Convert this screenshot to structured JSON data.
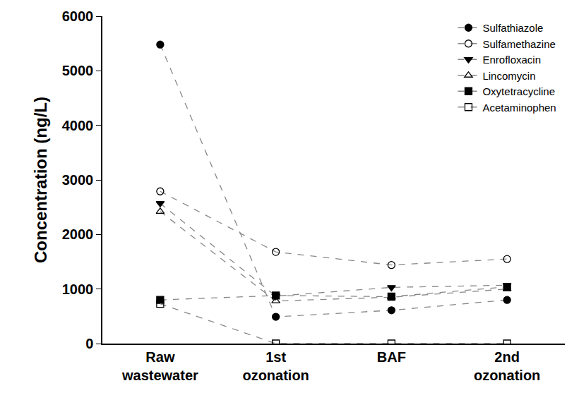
{
  "chart_data": {
    "type": "line",
    "y_label": "Concentration (ng/L)",
    "categories": [
      "Raw wastewater",
      "1st ozonation",
      "BAF",
      "2nd ozonation"
    ],
    "series": [
      {
        "name": "Sulfathiazole",
        "color": "#000000",
        "marker": "circle",
        "line_style": "dashed",
        "values": [
          5480,
          490,
          610,
          800
        ]
      },
      {
        "name": "Sulfamethazine",
        "color": "#000000",
        "marker": "circle-open",
        "line_style": "dashed",
        "values": [
          2790,
          1680,
          1440,
          1550
        ]
      },
      {
        "name": "Enrofloxacin",
        "color": "#000000",
        "marker": "triangle-down",
        "line_style": "dashed",
        "values": [
          2570,
          870,
          1030,
          1070
        ]
      },
      {
        "name": "Lincomycin",
        "color": "#000000",
        "marker": "triangle-up-open",
        "line_style": "dashed",
        "values": [
          2420,
          780,
          850,
          1000
        ]
      },
      {
        "name": "Oxytetracycline",
        "color": "#000000",
        "marker": "square",
        "line_style": "dashed",
        "values": [
          800,
          880,
          860,
          1040
        ]
      },
      {
        "name": "Acetaminophen",
        "color": "#000000",
        "marker": "square-open",
        "line_style": "dashed",
        "values": [
          730,
          0,
          0,
          0
        ]
      }
    ],
    "ylim": [
      0,
      6000
    ],
    "yticks": [
      0,
      1000,
      2000,
      3000,
      4000,
      5000,
      6000
    ],
    "grid": false,
    "legend": "upper right"
  }
}
